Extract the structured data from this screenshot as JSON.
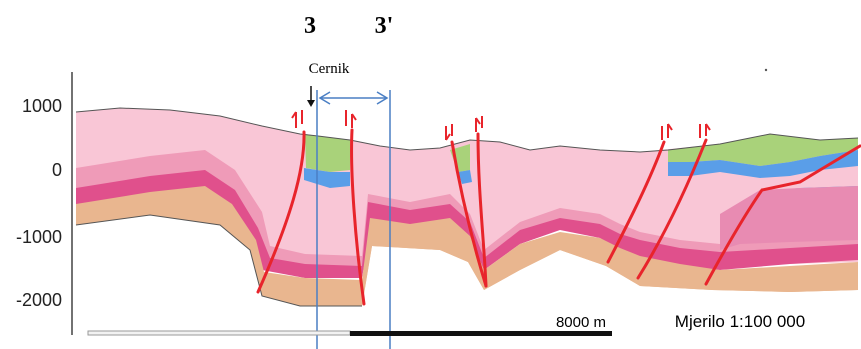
{
  "section": {
    "label_left": "3",
    "label_right": "3'",
    "locality": "Cernik"
  },
  "axis": {
    "ticks": [
      "1000",
      "0",
      "-1000",
      "-2000"
    ]
  },
  "scale": {
    "bar_label": "8000 m",
    "ratio_label": "Mjerilo 1:100 000"
  },
  "colors": {
    "layer_light_pink": "#f9c6d6",
    "layer_mid_pink": "#ef9bb8",
    "layer_magenta": "#e0508c",
    "layer_tan": "#e9b68f",
    "layer_green": "#a9d27a",
    "layer_blue": "#5a9ee8",
    "fault": "#e8242b",
    "section_line": "#4a7fc4"
  }
}
